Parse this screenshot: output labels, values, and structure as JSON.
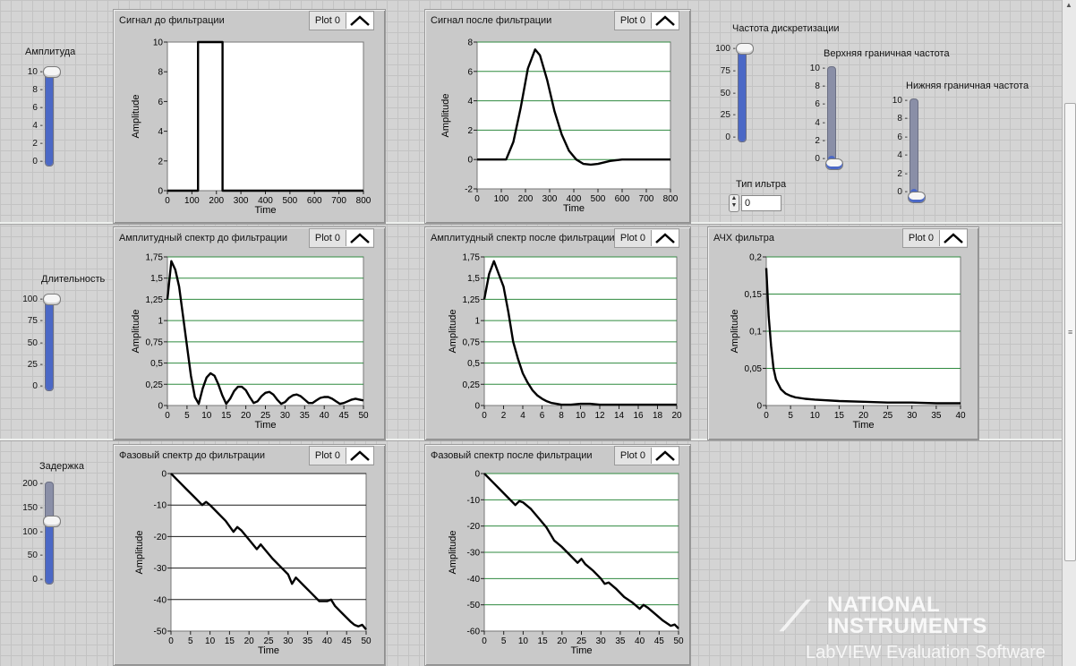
{
  "controls": {
    "amplitude": {
      "label": "Амплитуда",
      "ticks": [
        "10",
        "8",
        "6",
        "4",
        "2",
        "0"
      ],
      "value": 10,
      "max": 10
    },
    "duration": {
      "label": "Длительность",
      "ticks": [
        "100",
        "75",
        "50",
        "25",
        "0"
      ],
      "value": 100,
      "max": 100
    },
    "delay": {
      "label": "Задержка",
      "ticks": [
        "200",
        "150",
        "100",
        "50",
        "0"
      ],
      "value": 125,
      "max": 200
    },
    "sample_rate": {
      "label": "Частота дискретизации",
      "ticks": [
        "100",
        "75",
        "50",
        "25",
        "0"
      ],
      "value": 100,
      "max": 100
    },
    "upper_cutoff": {
      "label": "Верхняя граничная частота",
      "ticks": [
        "10",
        "8",
        "6",
        "4",
        "2",
        "0"
      ],
      "value": 0,
      "max": 10
    },
    "lower_cutoff": {
      "label": "Нижняя граничная частота",
      "ticks": [
        "10",
        "8",
        "6",
        "4",
        "2",
        "0"
      ],
      "value": 0,
      "max": 10
    },
    "filter_type": {
      "label": "Тип ильтра",
      "value": "0"
    }
  },
  "legend_label": "Plot 0",
  "colors": {
    "grid_green": "#2f8a3f",
    "grid_black": "#1a1a1a",
    "plot_bg": "#ffffff",
    "slider_fill": "#4b68c6"
  },
  "watermark": {
    "line1": "NATIONAL",
    "line2": "INSTRUMENTS",
    "product": "LabVIEW Evaluation Software"
  },
  "chart_data": [
    {
      "id": "sig-before",
      "type": "line",
      "title": "Сигнал до фильтрации",
      "xlabel": "Time",
      "ylabel": "Amplitude",
      "xlim": [
        0,
        800
      ],
      "ylim": [
        0,
        10
      ],
      "xticks": [
        0,
        100,
        200,
        300,
        400,
        500,
        600,
        700,
        800
      ],
      "yticks": [
        0,
        2,
        4,
        6,
        8,
        10
      ],
      "ytick_labels": [
        "0",
        "2",
        "4",
        "6",
        "8",
        "10"
      ],
      "grid": false,
      "series": [
        {
          "name": "Plot 0",
          "x": [
            0,
            125,
            125,
            225,
            225,
            800
          ],
          "y": [
            0,
            0,
            10,
            10,
            0,
            0
          ]
        }
      ]
    },
    {
      "id": "sig-after",
      "type": "line",
      "title": "Сигнал после фильтрации",
      "xlabel": "Time",
      "ylabel": "Amplitude",
      "xlim": [
        0,
        800
      ],
      "ylim": [
        -2,
        8
      ],
      "xticks": [
        0,
        100,
        200,
        300,
        400,
        500,
        600,
        700,
        800
      ],
      "yticks": [
        -2,
        0,
        2,
        4,
        6,
        8
      ],
      "ytick_labels": [
        "-2",
        "0",
        "2",
        "4",
        "6",
        "8"
      ],
      "grid": true,
      "grid_color": "green",
      "series": [
        {
          "name": "Plot 0",
          "x": [
            0,
            120,
            150,
            180,
            210,
            240,
            260,
            290,
            320,
            350,
            380,
            410,
            440,
            470,
            500,
            550,
            600,
            650,
            700,
            800
          ],
          "y": [
            0,
            0,
            1.2,
            3.5,
            6.2,
            7.5,
            7.1,
            5.4,
            3.3,
            1.7,
            0.6,
            0.0,
            -0.3,
            -0.35,
            -0.3,
            -0.1,
            0,
            0,
            0,
            0
          ]
        }
      ]
    },
    {
      "id": "amp-before",
      "type": "line",
      "title": "Амплитудный спектр до фильтрации",
      "xlabel": "Time",
      "ylabel": "Amplitude",
      "xlim": [
        0,
        50
      ],
      "ylim": [
        0,
        1.75
      ],
      "xticks": [
        0,
        5,
        10,
        15,
        20,
        25,
        30,
        35,
        40,
        45,
        50
      ],
      "yticks": [
        0,
        0.25,
        0.5,
        0.75,
        1,
        1.25,
        1.5,
        1.75
      ],
      "ytick_labels": [
        "0",
        "0,25",
        "0,5",
        "0,75",
        "1",
        "1,25",
        "1,5",
        "1,75"
      ],
      "grid": true,
      "grid_color": "green",
      "series": [
        {
          "name": "Plot 0",
          "x": [
            0,
            1,
            2,
            3,
            4,
            5,
            6,
            7,
            8,
            9,
            10,
            11,
            12,
            13,
            14,
            15,
            16,
            17,
            18,
            19,
            20,
            21,
            22,
            23,
            24,
            25,
            26,
            27,
            28,
            29,
            30,
            31,
            32,
            33,
            34,
            35,
            36,
            37,
            38,
            39,
            40,
            41,
            42,
            43,
            44,
            45,
            46,
            47,
            48,
            49,
            50
          ],
          "y": [
            1.25,
            1.7,
            1.6,
            1.4,
            1.05,
            0.7,
            0.35,
            0.1,
            0.02,
            0.2,
            0.33,
            0.38,
            0.35,
            0.25,
            0.12,
            0.02,
            0.08,
            0.17,
            0.22,
            0.22,
            0.18,
            0.1,
            0.03,
            0.05,
            0.11,
            0.15,
            0.16,
            0.13,
            0.07,
            0.02,
            0.04,
            0.09,
            0.12,
            0.13,
            0.11,
            0.07,
            0.03,
            0.03,
            0.06,
            0.09,
            0.1,
            0.1,
            0.08,
            0.05,
            0.02,
            0.03,
            0.05,
            0.07,
            0.08,
            0.07,
            0.06
          ]
        }
      ]
    },
    {
      "id": "amp-after",
      "type": "line",
      "title": "Амплитудный спектр после фильтрации",
      "xlabel": "",
      "ylabel": "Amplitude",
      "xlim": [
        0,
        20
      ],
      "ylim": [
        0,
        1.75
      ],
      "xticks": [
        0,
        2,
        4,
        6,
        8,
        10,
        12,
        14,
        16,
        18,
        20
      ],
      "yticks": [
        0,
        0.25,
        0.5,
        0.75,
        1,
        1.25,
        1.5,
        1.75
      ],
      "ytick_labels": [
        "0",
        "0,25",
        "0,5",
        "0,75",
        "1",
        "1,25",
        "1,5",
        "1,75"
      ],
      "grid": true,
      "grid_color": "green",
      "series": [
        {
          "name": "Plot 0",
          "x": [
            0,
            0.5,
            1,
            1.5,
            2,
            2.5,
            3,
            3.5,
            4,
            4.5,
            5,
            5.5,
            6,
            6.5,
            7,
            7.5,
            8,
            9,
            10,
            11,
            12,
            14,
            16,
            18,
            20
          ],
          "y": [
            1.25,
            1.55,
            1.7,
            1.55,
            1.4,
            1.1,
            0.75,
            0.55,
            0.38,
            0.27,
            0.18,
            0.12,
            0.08,
            0.05,
            0.03,
            0.02,
            0.01,
            0.01,
            0.02,
            0.02,
            0.01,
            0.01,
            0.01,
            0.01,
            0.01
          ]
        }
      ]
    },
    {
      "id": "filter-response",
      "type": "line",
      "title": "АЧХ фильтра",
      "xlabel": "Time",
      "ylabel": "Amplitude",
      "xlim": [
        0,
        40
      ],
      "ylim": [
        0,
        0.2
      ],
      "xticks": [
        0,
        5,
        10,
        15,
        20,
        25,
        30,
        35,
        40
      ],
      "yticks": [
        0,
        0.05,
        0.1,
        0.15,
        0.2
      ],
      "ytick_labels": [
        "0",
        "0,05",
        "0,1",
        "0,15",
        "0,2"
      ],
      "grid": true,
      "grid_color": "green",
      "series": [
        {
          "name": "Plot 0",
          "x": [
            0,
            0.5,
            1,
            1.5,
            2,
            3,
            4,
            5,
            6,
            8,
            10,
            15,
            20,
            25,
            30,
            35,
            40
          ],
          "y": [
            0.185,
            0.12,
            0.08,
            0.05,
            0.035,
            0.022,
            0.016,
            0.013,
            0.011,
            0.009,
            0.008,
            0.006,
            0.005,
            0.004,
            0.004,
            0.003,
            0.003
          ]
        }
      ]
    },
    {
      "id": "phase-before",
      "type": "line",
      "title": "Фазовый спектр до фильтрации",
      "xlabel": "Time",
      "ylabel": "Amplitude",
      "xlim": [
        0,
        50
      ],
      "ylim": [
        -50,
        0
      ],
      "xticks": [
        0,
        5,
        10,
        15,
        20,
        25,
        30,
        35,
        40,
        45,
        50
      ],
      "yticks": [
        -50,
        -40,
        -30,
        -20,
        -10,
        0
      ],
      "ytick_labels": [
        "-50",
        "-40",
        "-30",
        "-20",
        "-10",
        "0"
      ],
      "grid": true,
      "grid_color": "black",
      "series": [
        {
          "name": "Plot 0",
          "x": [
            0,
            2,
            4,
            6,
            8,
            9,
            10,
            12,
            14,
            16,
            17,
            18,
            20,
            22,
            23,
            24,
            26,
            28,
            30,
            31,
            32,
            34,
            36,
            38,
            40,
            41,
            42,
            44,
            46,
            47,
            48,
            49,
            50
          ],
          "y": [
            0,
            -2.5,
            -5,
            -7.5,
            -10,
            -9,
            -10,
            -12.5,
            -15,
            -18.5,
            -17,
            -18,
            -21,
            -24,
            -22.5,
            -24,
            -27,
            -29.5,
            -32,
            -35,
            -33,
            -35.5,
            -38,
            -40.5,
            -40.5,
            -40,
            -42,
            -44.5,
            -47,
            -48,
            -48.5,
            -48,
            -49.5
          ]
        }
      ]
    },
    {
      "id": "phase-after",
      "type": "line",
      "title": "Фазовый спектр после фильтрации",
      "xlabel": "Time",
      "ylabel": "Amplitude",
      "xlim": [
        0,
        50
      ],
      "ylim": [
        -60,
        0
      ],
      "xticks": [
        0,
        5,
        10,
        15,
        20,
        25,
        30,
        35,
        40,
        45,
        50
      ],
      "yticks": [
        -60,
        -50,
        -40,
        -30,
        -20,
        -10,
        0
      ],
      "ytick_labels": [
        "-60",
        "-50",
        "-40",
        "-30",
        "-20",
        "-10",
        "0"
      ],
      "grid": true,
      "grid_color": "green",
      "series": [
        {
          "name": "Plot 0",
          "x": [
            0,
            2,
            4,
            6,
            8,
            9,
            10,
            12,
            14,
            16,
            18,
            20,
            22,
            24,
            25,
            26,
            28,
            30,
            31,
            32,
            34,
            36,
            38,
            40,
            41,
            42,
            44,
            46,
            48,
            49,
            50
          ],
          "y": [
            0,
            -3,
            -6,
            -9,
            -12,
            -10.5,
            -11,
            -13.5,
            -17,
            -20.5,
            -25.5,
            -28,
            -31,
            -34,
            -32.5,
            -34.5,
            -37,
            -40,
            -42,
            -41.5,
            -44,
            -47,
            -49,
            -51.5,
            -50,
            -51,
            -53.5,
            -56,
            -58,
            -57.5,
            -59
          ]
        }
      ]
    }
  ]
}
